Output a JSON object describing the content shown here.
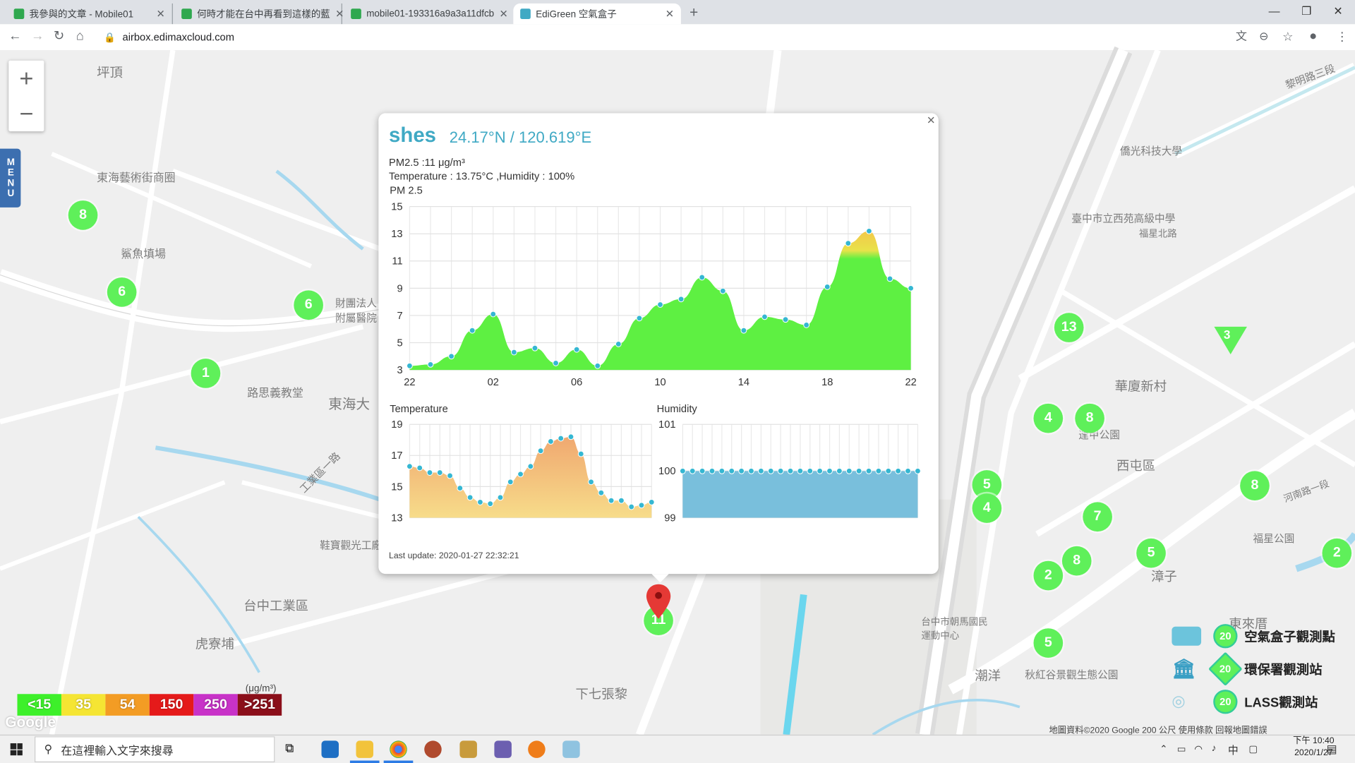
{
  "browser": {
    "tabs": [
      {
        "title": "我參與的文章 - Mobile01"
      },
      {
        "title": "何時才能在台中再看到這樣的藍"
      },
      {
        "title": "mobile01-193316a9a3a11dfcb"
      },
      {
        "title": "EdiGreen 空氣盒子"
      }
    ],
    "url": "airbox.edimaxcloud.com"
  },
  "map": {
    "labels": [
      "坪頂",
      "東海藝術街商圈",
      "鯊魚填場",
      "路思義教堂",
      "東海大",
      "台中工業區",
      "虎寮埔",
      "下七張黎",
      "西屯區",
      "華廈新村",
      "漳子",
      "東來厝",
      "潮洋",
      "台中市朝馬國民運動中心",
      "秋紅谷景觀生態公園",
      "福星公園",
      "逢甲公園",
      "臺中市立西苑高級中學",
      "僑光科技大學",
      "鞋寶觀光工廠",
      "工業區一路",
      "財團法人附屬醫院",
      "黎明路三段",
      "福星北路",
      "河南路一段"
    ],
    "markers": [
      "8",
      "6",
      "6",
      "1",
      "13",
      "3",
      "4",
      "8",
      "5",
      "4",
      "7",
      "5",
      "8",
      "2",
      "8",
      "2",
      "5",
      "11"
    ],
    "menu_label": "MENU",
    "zoom_in": "+",
    "zoom_out": "−",
    "attribution": "地圖資料©2020 Google    200 公尺          使用條款    回報地圖錯誤",
    "google_logo": "Google"
  },
  "popup": {
    "name": "shes",
    "coords": "24.17°N / 120.619°E",
    "pm25_line": "PM2.5 :11 μg/m³",
    "temp_line": "Temperature : 13.75°C ,Humidity : 100%",
    "pm_title": "PM 2.5",
    "temp_title": "Temperature",
    "hum_title": "Humidity",
    "last_update": "Last update: 2020-01-27 22:32:21",
    "close": "×"
  },
  "chart_data": [
    {
      "type": "area",
      "title": "PM 2.5",
      "x_tick_labels": [
        "22",
        "02",
        "06",
        "10",
        "14",
        "18",
        "22"
      ],
      "y_ticks": [
        3,
        5,
        7,
        9,
        11,
        13,
        15
      ],
      "ylim": [
        3,
        15
      ],
      "series": [
        {
          "values": [
            3.3,
            3.4,
            4.0,
            5.9,
            7.1,
            4.3,
            4.6,
            3.5,
            4.5,
            3.3,
            4.9,
            6.8,
            7.8,
            8.2,
            9.8,
            8.8,
            5.9,
            6.9,
            6.7,
            6.3,
            9.1,
            12.3,
            13.2,
            9.7,
            9.0
          ]
        }
      ]
    },
    {
      "type": "area",
      "title": "Temperature",
      "y_ticks": [
        13,
        15,
        17,
        19
      ],
      "ylim": [
        13,
        19
      ],
      "series": [
        {
          "values": [
            16.3,
            16.2,
            15.9,
            15.9,
            15.7,
            14.9,
            14.3,
            14.0,
            13.9,
            14.3,
            15.3,
            15.8,
            16.3,
            17.3,
            17.9,
            18.1,
            18.2,
            17.1,
            15.3,
            14.6,
            14.1,
            14.1,
            13.7,
            13.8,
            14.0
          ]
        }
      ]
    },
    {
      "type": "area",
      "title": "Humidity",
      "y_ticks": [
        99,
        100,
        101
      ],
      "ylim": [
        99,
        101
      ],
      "series": [
        {
          "values": [
            100,
            100,
            100,
            100,
            100,
            100,
            100,
            100,
            100,
            100,
            100,
            100,
            100,
            100,
            100,
            100,
            100,
            100,
            100,
            100,
            100,
            100,
            100,
            100,
            100
          ]
        }
      ]
    }
  ],
  "aqi_legend": {
    "unit": "(μg/m³)",
    "bins": [
      {
        "label": "<15",
        "color": "#3df02a"
      },
      {
        "label": "35",
        "color": "#f5e533"
      },
      {
        "label": "54",
        "color": "#f39c24"
      },
      {
        "label": "150",
        "color": "#e51a1a"
      },
      {
        "label": "250",
        "color": "#c832c8"
      },
      {
        "label": ">251",
        "color": "#8b0f1a"
      }
    ]
  },
  "station_legend": [
    {
      "count": "20",
      "label": "空氣盒子觀測點"
    },
    {
      "count": "20",
      "label": "環保署觀測站"
    },
    {
      "count": "20",
      "label": "LASS觀測站"
    }
  ],
  "taskbar": {
    "search_placeholder": "在這裡輸入文字來搜尋",
    "time": "下午 10:40",
    "date": "2020/1/27",
    "ime": "中"
  }
}
